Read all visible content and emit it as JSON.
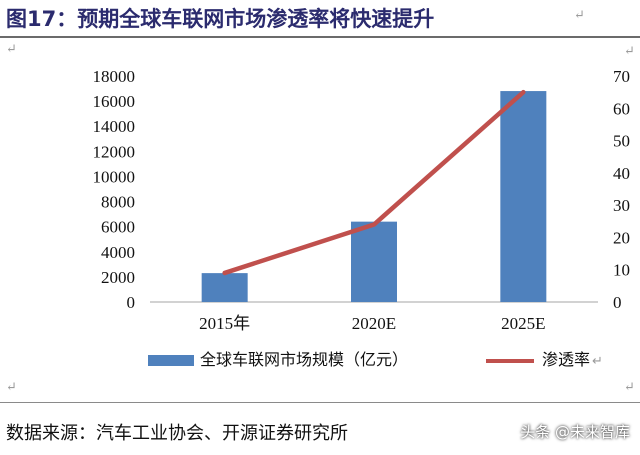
{
  "title": "图17：预期全球车联网市场渗透率将快速提升",
  "source": "数据来源：汽车工业协会、开源证券研究所",
  "watermark": "头条 @未来智库",
  "return_mark": "↵",
  "colors": {
    "bar": "#4f81bd",
    "line": "#c0504d",
    "title": "#2b2b6e"
  },
  "chart_data": {
    "type": "bar",
    "categories": [
      "2015年",
      "2020E",
      "2025E"
    ],
    "series": [
      {
        "name": "全球车联网市场规模（亿元）",
        "type": "bar",
        "axis": "left",
        "values": [
          2300,
          6400,
          16800
        ]
      },
      {
        "name": "渗透率",
        "type": "line",
        "axis": "right",
        "values": [
          9,
          24,
          65
        ]
      }
    ],
    "ylim": [
      0,
      18000
    ],
    "yticks": [
      "18000",
      "16000",
      "14000",
      "12000",
      "10000",
      "8000",
      "6000",
      "4000",
      "2000",
      "0"
    ],
    "y2lim": [
      0,
      70
    ],
    "y2ticks": [
      "70",
      "60",
      "50",
      "40",
      "30",
      "20",
      "10",
      "0"
    ],
    "grid": false,
    "legend_position": "bottom"
  }
}
